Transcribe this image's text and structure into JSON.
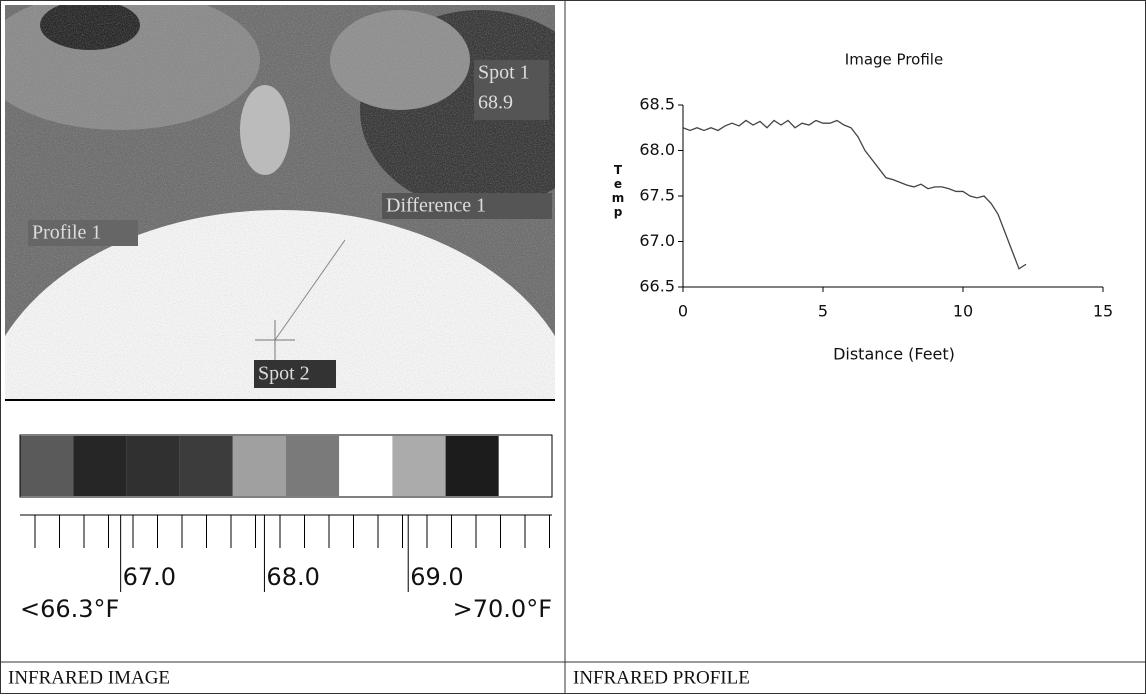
{
  "image_panel": {
    "labels": {
      "spot1": "Spot 1",
      "spot1_value": "68.9",
      "difference": "Difference 1",
      "profile": "Profile 1",
      "spot2": "Spot 2"
    },
    "palette": [
      "#5a5a5a",
      "#262626",
      "#303030",
      "#3c3c3c",
      "#a0a0a0",
      "#7a7a7a",
      "#ffffff",
      "#ababab",
      "#1c1c1c",
      "#ffffff"
    ],
    "scale_lim": [
      66.3,
      70.0
    ],
    "scale_ticks": [
      {
        "value": 67,
        "label": "67.0"
      },
      {
        "value": 68,
        "label": "68.0"
      },
      {
        "value": 69,
        "label": "69.0"
      }
    ],
    "scale_min_label": "<66.3°F",
    "scale_max_label": ">70.0°F"
  },
  "chart_data": {
    "type": "line",
    "title": "Image Profile",
    "x_label": "Distance (Feet)",
    "y_label": "Temp",
    "x": [
      0,
      0.25,
      0.5,
      0.75,
      1,
      1.25,
      1.5,
      1.75,
      2,
      2.25,
      2.5,
      2.75,
      3,
      3.25,
      3.5,
      3.75,
      4,
      4.25,
      4.5,
      4.75,
      5,
      5.25,
      5.5,
      5.75,
      6,
      6.25,
      6.5,
      6.75,
      7,
      7.25,
      7.5,
      7.75,
      8,
      8.25,
      8.5,
      8.75,
      9,
      9.25,
      9.5,
      9.75,
      10,
      10.25,
      10.5,
      10.75,
      11,
      11.25,
      11.5,
      11.75,
      12,
      12.25
    ],
    "series": [
      {
        "name": "Profile 1",
        "color": "#444444",
        "values": [
          68.25,
          68.22,
          68.25,
          68.22,
          68.25,
          68.22,
          68.27,
          68.3,
          68.27,
          68.33,
          68.28,
          68.32,
          68.25,
          68.33,
          68.28,
          68.33,
          68.25,
          68.3,
          68.28,
          68.33,
          68.3,
          68.3,
          68.33,
          68.28,
          68.25,
          68.15,
          68.0,
          67.9,
          67.8,
          67.7,
          67.68,
          67.65,
          67.62,
          67.6,
          67.63,
          67.58,
          67.6,
          67.6,
          67.58,
          67.55,
          67.55,
          67.5,
          67.48,
          67.5,
          67.42,
          67.3,
          67.1,
          66.9,
          66.7,
          66.75
        ]
      }
    ],
    "xlim": [
      0,
      15
    ],
    "ylim": [
      66.5,
      68.5
    ],
    "xticks": [
      0,
      5,
      10,
      15
    ],
    "yticks": [
      66.5,
      {
        "value": 67,
        "label": "67.0"
      },
      67.5,
      {
        "value": 68,
        "label": "68.0"
      },
      68.5
    ]
  },
  "captions": [
    "INFRARED IMAGE",
    "INFRARED PROFILE"
  ]
}
